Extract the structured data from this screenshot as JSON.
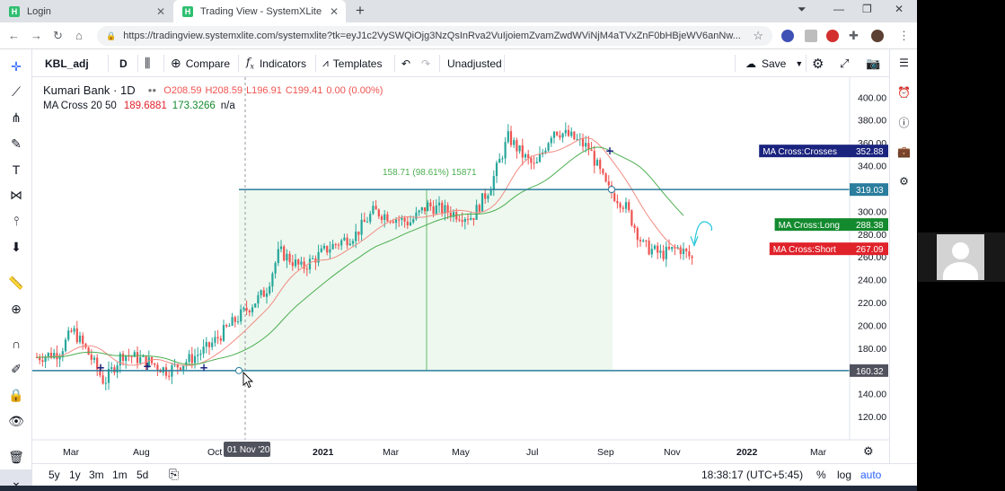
{
  "browser": {
    "tabs": [
      {
        "title": "Login",
        "active": false
      },
      {
        "title": "Trading View - SystemXLite",
        "active": true
      }
    ],
    "url": "https://tradingview.systemxlite.com/systemxlite?tk=eyJ1c2VySWQiOjg3NzQsInRva2VuIjoiemZvamZwdWViNjM4aTVxZnF0bHBjeWV6anNw..."
  },
  "toolbar": {
    "symbol": "KBL_adj",
    "interval": "D",
    "compare": "Compare",
    "indicators": "Indicators",
    "templates": "Templates",
    "adjustment": "Unadjusted",
    "save": "Save"
  },
  "legend": {
    "name": "Kumari Bank · 1D",
    "ohlc": {
      "o": "O208.59",
      "h": "H208.59",
      "l": "L196.91",
      "c": "C199.41",
      "chg": "0.00 (0.00%)"
    },
    "ma_name": "MA Cross 20 50",
    "ma_fast": "189.6881",
    "ma_slow": "173.3266",
    "ma_na": "n/a"
  },
  "price_axis": {
    "ticks": [
      "400.00",
      "380.00",
      "360.00",
      "340.00",
      "320.00",
      "300.00",
      "280.00",
      "260.00",
      "240.00",
      "220.00",
      "200.00",
      "180.00",
      "160.00",
      "140.00",
      "120.00"
    ]
  },
  "time_axis": {
    "labels": [
      "Mar",
      "Aug",
      "Oct",
      "2021",
      "Mar",
      "May",
      "Jul",
      "Sep",
      "Nov",
      "2022",
      "Mar"
    ],
    "crosshair": "01 Nov '20"
  },
  "price_labels": [
    {
      "text": "MA Cross:Crosses",
      "value": "352.88",
      "color": "#1a237e"
    },
    {
      "text": "",
      "value": "319.03",
      "color": "#2a7d9c"
    },
    {
      "text": "MA Cross:Long",
      "value": "288.38",
      "color": "#138a2e"
    },
    {
      "text": "MA Cross:Short",
      "value": "267.09",
      "color": "#e0222b"
    },
    {
      "text": "",
      "value": "160.32",
      "color": "#50535e"
    }
  ],
  "measure": {
    "text": "158.71 (98.61%) 15871"
  },
  "bottom": {
    "ranges": [
      "5y",
      "1y",
      "3m",
      "1m",
      "5d"
    ],
    "time": "18:38:17 (UTC+5:45)",
    "pct": "%",
    "log": "log",
    "auto": "auto"
  },
  "chart_data": {
    "type": "candlestick",
    "title": "Kumari Bank · 1D",
    "x_labels": [
      "Mar",
      "Aug",
      "Oct",
      "2021",
      "Mar",
      "May",
      "Jul",
      "Sep",
      "Nov",
      "2022",
      "Mar"
    ],
    "ylim": [
      110,
      410
    ],
    "series": [
      {
        "name": "KBL_adj",
        "x": [
          "Mar",
          "Aug",
          "Oct",
          "2021",
          "Mar",
          "May",
          "Jul",
          "Sep",
          "Nov"
        ],
        "close_approx": [
          175,
          168,
          170,
          240,
          290,
          300,
          355,
          320,
          265
        ]
      },
      {
        "name": "MA Cross 20",
        "value": 189.6881
      },
      {
        "name": "MA Cross 50",
        "value": 173.3266
      }
    ],
    "levels": [
      319.03,
      160.32
    ],
    "measure": {
      "from": 160.32,
      "to": 319.03,
      "change": 158.71,
      "pct": 98.61,
      "ticks": 15871
    }
  }
}
